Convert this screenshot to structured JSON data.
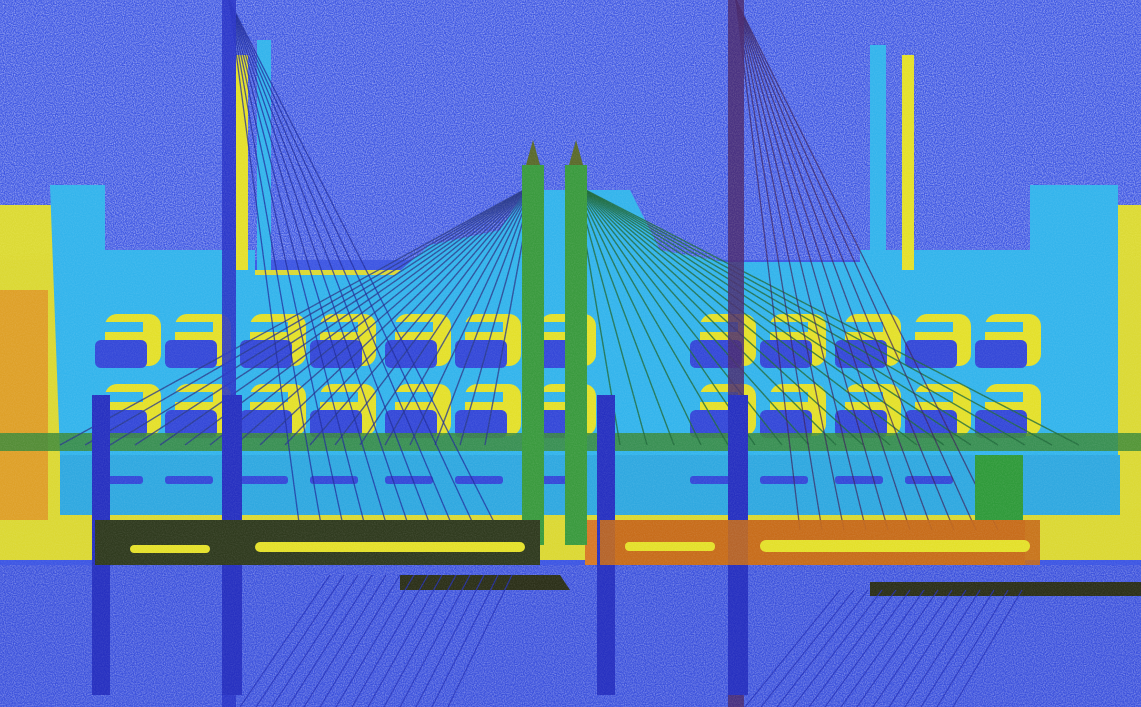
{
  "artwork": {
    "palette": {
      "sky": "#3d56e3",
      "sky_light": "#5a78f0",
      "cyan": "#33b4ec",
      "yellow": "#e4e02a",
      "orange": "#e88a1a",
      "green": "#2f9a3a",
      "dark_olive": "#2f3a1e",
      "navy": "#1f2fb0",
      "maroon": "#6a2a5a",
      "window_blue": "#3448d8"
    },
    "layers": [
      "textured-blue-sky",
      "yellow-building-offset",
      "cyan-building-facade",
      "green-bridge-towers",
      "cable-stay-lines",
      "vertical-navy-pylons",
      "road-deck",
      "river-water"
    ]
  }
}
